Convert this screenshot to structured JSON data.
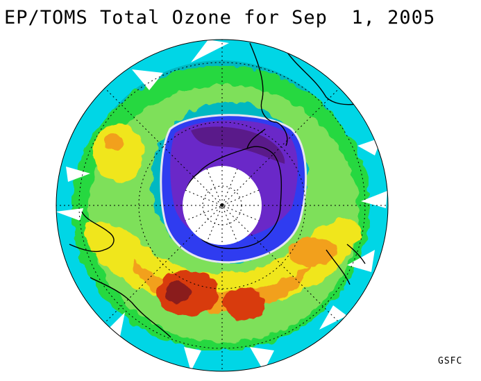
{
  "figure": {
    "title": "EP/TOMS Total Ozone for Sep  1, 2005",
    "credit": "GSFC"
  },
  "map": {
    "projection": "south-polar-orthographic",
    "colors": {
      "background": "#ffffff",
      "coastline": "#000000",
      "grid": "#000000",
      "hole_contour": "#e6e6f0",
      "no_data_pole": "#ffffff",
      "scale_cyan": "#00d6e6",
      "scale_teal": "#00b8c2",
      "scale_green": "#28d840",
      "scale_lightgreen": "#7ee05a",
      "scale_yellow": "#f0e61a",
      "scale_orange": "#f2a01c",
      "scale_red": "#d83a10",
      "scale_brown": "#8a1a1a",
      "scale_blue": "#2f3cf0",
      "scale_violet": "#6a28c8",
      "scale_purple": "#5a1a8a"
    }
  }
}
